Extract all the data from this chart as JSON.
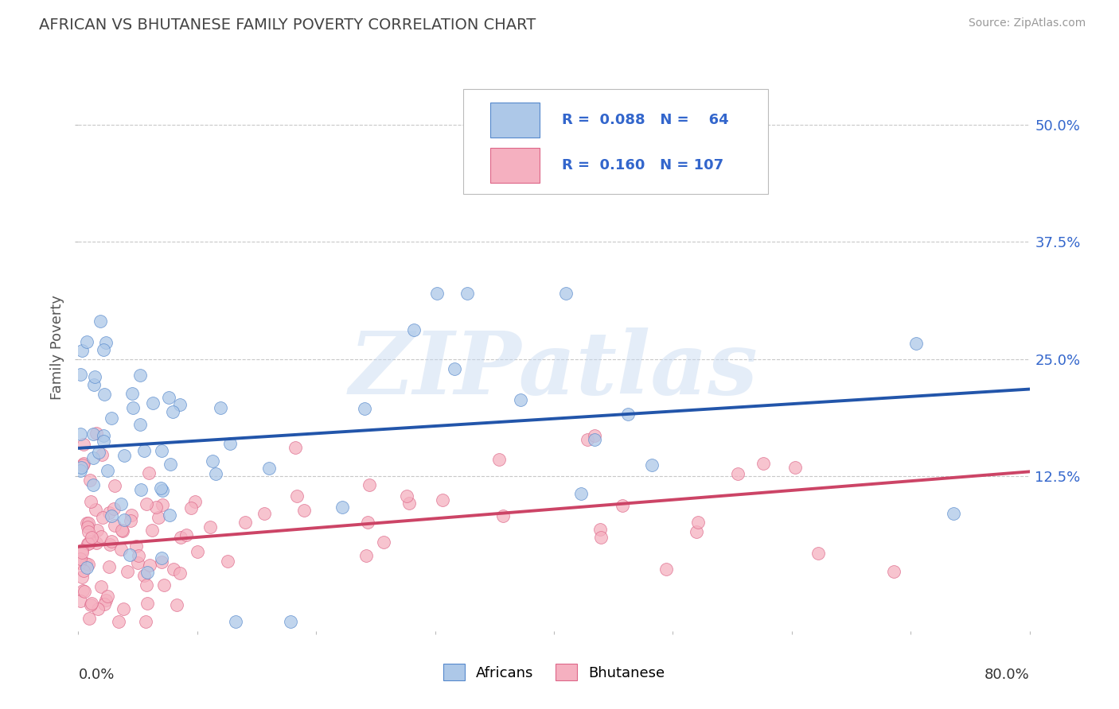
{
  "title": "AFRICAN VS BHUTANESE FAMILY POVERTY CORRELATION CHART",
  "source": "Source: ZipAtlas.com",
  "ylabel": "Family Poverty",
  "ytick_labels": [
    "12.5%",
    "25.0%",
    "37.5%",
    "50.0%"
  ],
  "ytick_vals": [
    0.125,
    0.25,
    0.375,
    0.5
  ],
  "xlim": [
    0.0,
    0.8
  ],
  "ylim": [
    -0.04,
    0.565
  ],
  "africans_R": 0.088,
  "africans_N": 64,
  "bhutanese_R": 0.16,
  "bhutanese_N": 107,
  "africans_color": "#adc8e8",
  "africans_edge_color": "#5588cc",
  "africans_line_color": "#2255aa",
  "bhutanese_color": "#f5b0c0",
  "bhutanese_edge_color": "#dd6688",
  "bhutanese_line_color": "#cc4466",
  "watermark": "ZIPatlas",
  "background_color": "#ffffff",
  "grid_color": "#c8c8c8",
  "title_color": "#444444",
  "axis_label_color": "#3366cc",
  "africans_line_x0": 0.0,
  "africans_line_y0": 0.155,
  "africans_line_x1": 0.8,
  "africans_line_y1": 0.218,
  "bhutanese_line_x0": 0.0,
  "bhutanese_line_y0": 0.05,
  "bhutanese_line_x1": 0.8,
  "bhutanese_line_y1": 0.13,
  "africans_seed": 7,
  "bhutanese_seed": 99
}
